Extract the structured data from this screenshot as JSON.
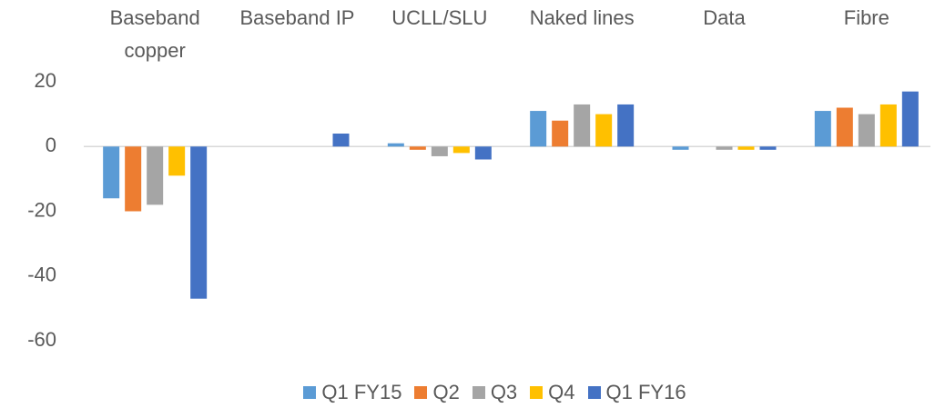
{
  "chart_data": {
    "type": "bar",
    "categories": [
      "Baseband copper",
      "Baseband IP",
      "UCLL/SLU",
      "Naked lines",
      "Data",
      "Fibre"
    ],
    "series": [
      {
        "name": "Q1 FY15",
        "color": "#5b9bd5",
        "values": [
          -16,
          0,
          1,
          11,
          -1,
          11
        ]
      },
      {
        "name": "Q2",
        "color": "#ed7d31",
        "values": [
          -20,
          0,
          -1,
          8,
          0,
          12
        ]
      },
      {
        "name": "Q3",
        "color": "#a5a5a5",
        "values": [
          -18,
          0,
          -3,
          13,
          -1,
          10
        ]
      },
      {
        "name": "Q4",
        "color": "#ffc000",
        "values": [
          -9,
          0,
          -2,
          10,
          -1,
          13
        ]
      },
      {
        "name": "Q1 FY16",
        "color": "#4472c4",
        "values": [
          -47,
          4,
          -4,
          13,
          -1,
          17
        ]
      }
    ],
    "ylim": [
      -60,
      20
    ],
    "yticks": [
      -60,
      -40,
      -20,
      0,
      20
    ],
    "legend": "bottom"
  }
}
